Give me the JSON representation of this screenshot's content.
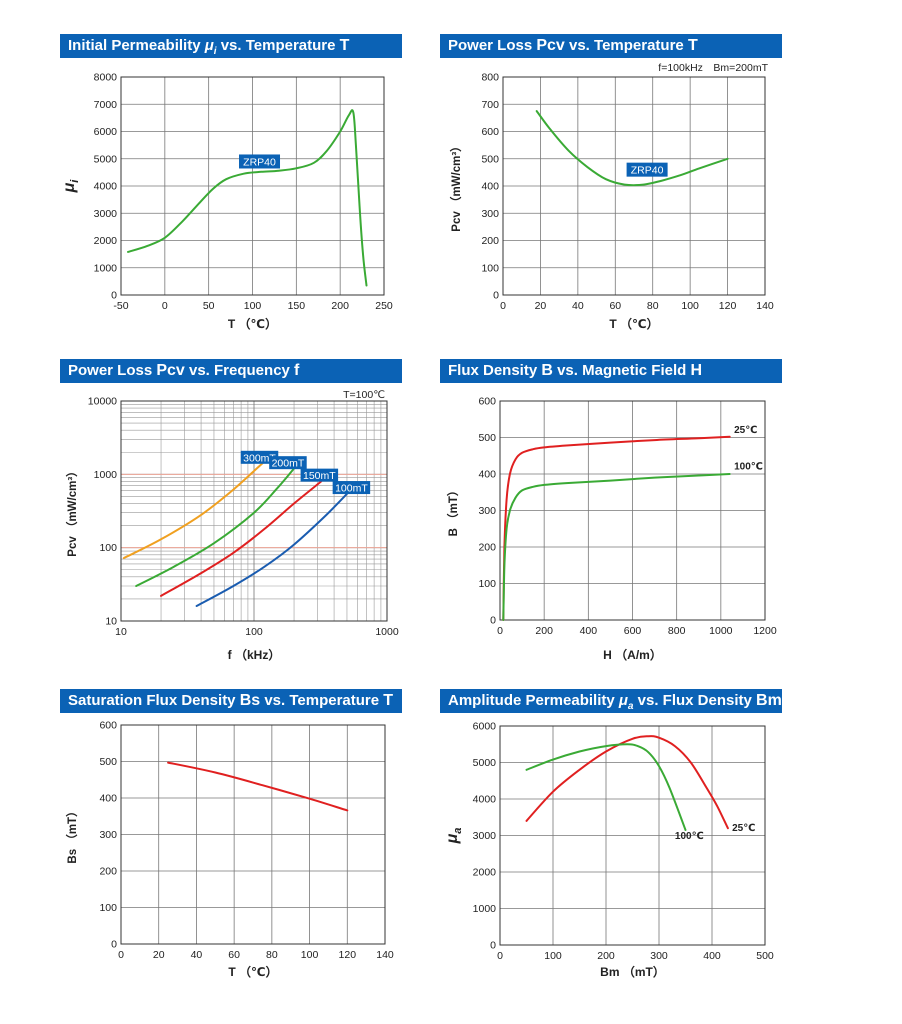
{
  "chart_data": [
    {
      "id": "mu_T",
      "type": "line",
      "title": {
        "pre": "Initial Permeability ",
        "sym": "μ",
        "sub": "i",
        "mid": " vs. Temperature ",
        "bold": "T"
      },
      "xlabel": "T （℃）",
      "ylabel": {
        "sym": "μ",
        "sub": "i"
      },
      "xlim": [
        -50,
        250
      ],
      "ylim": [
        0,
        8000
      ],
      "xticks": [
        -50,
        0,
        50,
        100,
        150,
        200,
        250
      ],
      "xticklabels": [
        "-50",
        "0",
        "50",
        "100",
        "150",
        "200",
        "250"
      ],
      "yticks": [
        0,
        1000,
        2000,
        3000,
        4000,
        5000,
        6000,
        7000,
        8000
      ],
      "yticklabels": [
        "0",
        "1000",
        "2000",
        "3000",
        "4000",
        "5000",
        "6000",
        "7000",
        "8000"
      ],
      "grid": true,
      "annotations": [
        {
          "text": "ZRP40",
          "x": 108,
          "y": 4900
        }
      ],
      "series": [
        {
          "color": "#3aaa35",
          "x": [
            -42,
            -20,
            0,
            20,
            40,
            55,
            70,
            90,
            110,
            130,
            150,
            170,
            185,
            200,
            210,
            215,
            218,
            222,
            226,
            230
          ],
          "y": [
            1580,
            1800,
            2100,
            2700,
            3400,
            3900,
            4250,
            4450,
            4520,
            4560,
            4650,
            4850,
            5300,
            6000,
            6600,
            6700,
            5500,
            3300,
            1500,
            350
          ]
        }
      ]
    },
    {
      "id": "pcv_T",
      "type": "line",
      "title": {
        "pre": "Power Loss ",
        "bold": "Pcv",
        "mid": " vs. Temperature ",
        "bold2": "T"
      },
      "note": "f=100kHz　Bm=200mT",
      "xlabel": "T （℃）",
      "ylabel": "Pcv （mW/cm³）",
      "xlim": [
        0,
        140
      ],
      "ylim": [
        0,
        800
      ],
      "xticks": [
        0,
        20,
        40,
        60,
        80,
        100,
        120,
        140
      ],
      "xticklabels": [
        "0",
        "20",
        "40",
        "60",
        "80",
        "100",
        "120",
        "140"
      ],
      "yticks": [
        0,
        100,
        200,
        300,
        400,
        500,
        600,
        700,
        800
      ],
      "yticklabels": [
        "0",
        "100",
        "200",
        "300",
        "400",
        "500",
        "600",
        "700",
        "800"
      ],
      "grid": true,
      "annotations": [
        {
          "text": "ZRP40",
          "x": 77,
          "y": 460
        }
      ],
      "series": [
        {
          "color": "#3aaa35",
          "x": [
            18,
            25,
            35,
            45,
            55,
            65,
            75,
            85,
            95,
            105,
            120
          ],
          "y": [
            675,
            610,
            530,
            470,
            425,
            405,
            405,
            420,
            440,
            465,
            500
          ]
        }
      ]
    },
    {
      "id": "pcv_f",
      "type": "line",
      "title": {
        "pre": "Power Loss ",
        "bold": "Pcv",
        "mid": " vs. Frequency ",
        "bold2": "f"
      },
      "note": "T=100℃",
      "xlabel": "f （kHz）",
      "ylabel": "Pcv （mW/cm³）",
      "xscale": "log",
      "yscale": "log",
      "xlim": [
        10,
        1000
      ],
      "ylim": [
        10,
        10000
      ],
      "xticks": [
        10,
        100,
        1000
      ],
      "xticklabels": [
        "10",
        "100",
        "1000"
      ],
      "yticks": [
        10,
        100,
        1000,
        10000
      ],
      "yticklabels": [
        "10",
        "100",
        "1000",
        "10000"
      ],
      "grid": true,
      "series": [
        {
          "name": "300mT",
          "color": "#f0a020",
          "x": [
            10.5,
            20,
            40,
            70,
            110,
            130
          ],
          "y": [
            72,
            130,
            280,
            620,
            1300,
            1700
          ]
        },
        {
          "name": "200mT",
          "color": "#3aaa35",
          "x": [
            13,
            25,
            50,
            100,
            150,
            200
          ],
          "y": [
            30,
            55,
            115,
            300,
            650,
            1200
          ]
        },
        {
          "name": "150mT",
          "color": "#e02020",
          "x": [
            20,
            40,
            70,
            120,
            200,
            320
          ],
          "y": [
            22,
            45,
            85,
            180,
            400,
            800
          ]
        },
        {
          "name": "100mT",
          "color": "#1a5cb0",
          "x": [
            37,
            70,
            120,
            200,
            350,
            550
          ],
          "y": [
            16,
            30,
            55,
            110,
            280,
            650
          ]
        }
      ],
      "series_labels": [
        {
          "text": "300mT",
          "x": 110,
          "y": 1680
        },
        {
          "text": "200mT",
          "x": 180,
          "y": 1420
        },
        {
          "text": "150mT",
          "x": 310,
          "y": 960
        },
        {
          "text": "100mT",
          "x": 540,
          "y": 650
        }
      ]
    },
    {
      "id": "B_H",
      "type": "line",
      "title": {
        "pre": "Flux Density ",
        "bold": "B",
        "mid": " vs. Magnetic Field ",
        "bold2": "H"
      },
      "xlabel": "H （A/m）",
      "ylabel": "B （mT）",
      "xlim": [
        0,
        1200
      ],
      "ylim": [
        0,
        600
      ],
      "xticks": [
        0,
        200,
        400,
        600,
        800,
        1000,
        1200
      ],
      "xticklabels": [
        "0",
        "200",
        "400",
        "600",
        "800",
        "1000",
        "1200"
      ],
      "yticks": [
        0,
        100,
        200,
        300,
        400,
        500,
        600
      ],
      "yticklabels": [
        "0",
        "100",
        "200",
        "300",
        "400",
        "500",
        "600"
      ],
      "grid": true,
      "series": [
        {
          "name": "25℃",
          "color": "#e02020",
          "x": [
            15,
            20,
            30,
            45,
            70,
            100,
            150,
            200,
            300,
            500,
            700,
            900,
            1040
          ],
          "y": [
            0,
            200,
            330,
            400,
            440,
            458,
            468,
            473,
            478,
            486,
            493,
            498,
            502
          ]
        },
        {
          "name": "100℃",
          "color": "#3aaa35",
          "x": [
            15,
            20,
            30,
            45,
            70,
            100,
            150,
            200,
            300,
            500,
            700,
            900,
            1040
          ],
          "y": [
            0,
            150,
            250,
            300,
            335,
            355,
            365,
            370,
            375,
            382,
            390,
            396,
            400
          ]
        }
      ],
      "series_labels": [
        {
          "text": "25℃",
          "x": 1060,
          "y": 512
        },
        {
          "text": "100℃",
          "x": 1060,
          "y": 412
        }
      ]
    },
    {
      "id": "Bs_T",
      "type": "line",
      "title": {
        "pre": "Saturation Flux Density ",
        "bold": "Bs",
        "mid": " vs. Temperature ",
        "bold2": "T"
      },
      "xlabel": "T （℃）",
      "ylabel": "Bs （mT）",
      "xlim": [
        0,
        140
      ],
      "ylim": [
        0,
        600
      ],
      "xticks": [
        0,
        20,
        40,
        60,
        80,
        100,
        120,
        140
      ],
      "xticklabels": [
        "0",
        "20",
        "40",
        "60",
        "80",
        "100",
        "120",
        "140"
      ],
      "yticks": [
        0,
        100,
        200,
        300,
        400,
        500,
        600
      ],
      "yticklabels": [
        "0",
        "100",
        "200",
        "300",
        "400",
        "500",
        "600"
      ],
      "grid": true,
      "series": [
        {
          "color": "#e02020",
          "x": [
            25,
            50,
            75,
            100,
            120
          ],
          "y": [
            497,
            470,
            435,
            398,
            366
          ]
        }
      ]
    },
    {
      "id": "mua_Bm",
      "type": "line",
      "title": {
        "pre": "Amplitude Permeability ",
        "sym": "μ",
        "sub": "a",
        "mid": " vs. Flux Density ",
        "bold": "Bm"
      },
      "xlabel": "Bm （mT）",
      "ylabel": {
        "sym": "μ",
        "sub": "a"
      },
      "xlim": [
        0,
        500
      ],
      "ylim": [
        0,
        6000
      ],
      "xticks": [
        0,
        100,
        200,
        300,
        400,
        500
      ],
      "xticklabels": [
        "0",
        "100",
        "200",
        "300",
        "400",
        "500"
      ],
      "yticks": [
        0,
        1000,
        2000,
        3000,
        4000,
        5000,
        6000
      ],
      "yticklabels": [
        "0",
        "1000",
        "2000",
        "3000",
        "4000",
        "5000",
        "6000"
      ],
      "grid": true,
      "series": [
        {
          "name": "25℃",
          "color": "#e02020",
          "x": [
            50,
            100,
            150,
            200,
            250,
            280,
            300,
            330,
            360,
            390,
            410,
            430
          ],
          "y": [
            3400,
            4200,
            4800,
            5300,
            5650,
            5720,
            5680,
            5450,
            5000,
            4300,
            3800,
            3200
          ]
        },
        {
          "name": "100℃",
          "color": "#3aaa35",
          "x": [
            50,
            100,
            150,
            200,
            240,
            260,
            280,
            300,
            320,
            350
          ],
          "y": [
            4800,
            5080,
            5300,
            5450,
            5500,
            5450,
            5280,
            4900,
            4300,
            3150
          ]
        }
      ],
      "series_labels": [
        {
          "text": "25℃",
          "x": 438,
          "y": 3120
        },
        {
          "text": "100℃",
          "x": 330,
          "y": 2900
        }
      ]
    }
  ]
}
